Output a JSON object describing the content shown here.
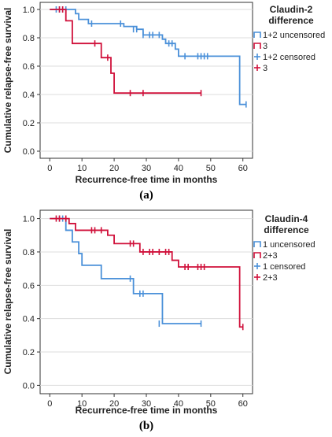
{
  "chart_data": [
    {
      "type": "line",
      "caption": "(a)",
      "xlabel": "Recurrence-free time in months",
      "ylabel": "Cumulative relapse-free survival",
      "xlim": [
        -3,
        63
      ],
      "ylim": [
        -0.05,
        1.05
      ],
      "xticks": [
        "0",
        "10",
        "20",
        "30",
        "40",
        "50",
        "60"
      ],
      "yticks": [
        "0.0",
        "0.2",
        "0.4",
        "0.6",
        "0.8",
        "1.0"
      ],
      "xtick_values": [
        0,
        10,
        20,
        30,
        40,
        50,
        60
      ],
      "ytick_values": [
        0,
        0.2,
        0.4,
        0.6,
        0.8,
        1.0
      ],
      "grid": true,
      "legend": {
        "title_line1": "Claudin-2",
        "title_line2": "difference",
        "placement": "right",
        "entries": [
          {
            "label": "1+2 uncensored",
            "color": "#4a90d9",
            "kind": "step"
          },
          {
            "label": "3",
            "color": "#d0103a",
            "kind": "step"
          },
          {
            "label": "1+2 censored",
            "color": "#4a90d9",
            "kind": "cross"
          },
          {
            "label": "3",
            "color": "#d0103a",
            "kind": "cross"
          }
        ]
      },
      "series": [
        {
          "color": "#4a90d9",
          "steps": [
            [
              0,
              1.0
            ],
            [
              8,
              0.97
            ],
            [
              9,
              0.93
            ],
            [
              12,
              0.9
            ],
            [
              23,
              0.88
            ],
            [
              27,
              0.86
            ],
            [
              29,
              0.82
            ],
            [
              35,
              0.79
            ],
            [
              36,
              0.76
            ],
            [
              39,
              0.72
            ],
            [
              40,
              0.67
            ],
            [
              59,
              0.33
            ],
            [
              61,
              0.33
            ]
          ],
          "censored": [
            [
              2,
              1.0
            ],
            [
              3,
              1.0
            ],
            [
              4,
              1.0
            ],
            [
              5,
              1.0
            ],
            [
              13,
              0.9
            ],
            [
              22,
              0.9
            ],
            [
              26,
              0.86
            ],
            [
              27,
              0.86
            ],
            [
              29,
              0.82
            ],
            [
              31,
              0.82
            ],
            [
              32,
              0.82
            ],
            [
              34,
              0.82
            ],
            [
              37,
              0.76
            ],
            [
              38,
              0.76
            ],
            [
              42,
              0.67
            ],
            [
              46,
              0.67
            ],
            [
              47,
              0.67
            ],
            [
              48,
              0.67
            ],
            [
              49,
              0.67
            ],
            [
              61,
              0.33
            ]
          ]
        },
        {
          "color": "#d0103a",
          "steps": [
            [
              0,
              1.0
            ],
            [
              5,
              0.92
            ],
            [
              7,
              0.76
            ],
            [
              14,
              0.76
            ],
            [
              16,
              0.66
            ],
            [
              19,
              0.55
            ],
            [
              20,
              0.41
            ],
            [
              47,
              0.41
            ]
          ],
          "censored": [
            [
              3,
              1.0
            ],
            [
              4,
              1.0
            ],
            [
              14,
              0.76
            ],
            [
              18,
              0.66
            ],
            [
              25,
              0.41
            ],
            [
              29,
              0.41
            ],
            [
              47,
              0.41
            ]
          ]
        }
      ]
    },
    {
      "type": "line",
      "caption": "(b)",
      "xlabel": "Recurrence-free time in months",
      "ylabel": "Cumulative relapse-free survival",
      "xlim": [
        -3,
        63
      ],
      "ylim": [
        -0.05,
        1.05
      ],
      "xticks": [
        "0",
        "10",
        "20",
        "30",
        "40",
        "50",
        "60"
      ],
      "yticks": [
        "0.0",
        "0.2",
        "0.4",
        "0.6",
        "0.8",
        "1.0"
      ],
      "xtick_values": [
        0,
        10,
        20,
        30,
        40,
        50,
        60
      ],
      "ytick_values": [
        0,
        0.2,
        0.4,
        0.6,
        0.8,
        1.0
      ],
      "grid": true,
      "legend": {
        "title_line1": "Claudin-4",
        "title_line2": "difference",
        "placement": "right",
        "entries": [
          {
            "label": "1 uncensored",
            "color": "#4a90d9",
            "kind": "step"
          },
          {
            "label": "2+3",
            "color": "#d0103a",
            "kind": "step"
          },
          {
            "label": "1 censored",
            "color": "#4a90d9",
            "kind": "cross"
          },
          {
            "label": "2+3",
            "color": "#d0103a",
            "kind": "cross"
          }
        ]
      },
      "series": [
        {
          "color": "#4a90d9",
          "steps": [
            [
              0,
              1.0
            ],
            [
              5,
              0.93
            ],
            [
              7,
              0.86
            ],
            [
              9,
              0.79
            ],
            [
              10,
              0.72
            ],
            [
              16,
              0.64
            ],
            [
              26,
              0.55
            ],
            [
              34,
              0.55
            ],
            [
              35,
              0.37
            ],
            [
              47,
              0.37
            ]
          ],
          "censored": [
            [
              3,
              1.0
            ],
            [
              4,
              1.0
            ],
            [
              25,
              0.64
            ],
            [
              28,
              0.55
            ],
            [
              29,
              0.55
            ],
            [
              34,
              0.37
            ],
            [
              47,
              0.37
            ]
          ]
        },
        {
          "color": "#d0103a",
          "steps": [
            [
              0,
              1.0
            ],
            [
              6,
              0.97
            ],
            [
              8,
              0.93
            ],
            [
              18,
              0.9
            ],
            [
              20,
              0.85
            ],
            [
              28,
              0.8
            ],
            [
              38,
              0.75
            ],
            [
              40,
              0.71
            ],
            [
              59,
              0.35
            ],
            [
              60,
              0.35
            ]
          ],
          "censored": [
            [
              2,
              1.0
            ],
            [
              3,
              1.0
            ],
            [
              5,
              1.0
            ],
            [
              13,
              0.93
            ],
            [
              14,
              0.93
            ],
            [
              16,
              0.93
            ],
            [
              25,
              0.85
            ],
            [
              26,
              0.85
            ],
            [
              29,
              0.8
            ],
            [
              31,
              0.8
            ],
            [
              32,
              0.8
            ],
            [
              34,
              0.8
            ],
            [
              36,
              0.8
            ],
            [
              37,
              0.8
            ],
            [
              42,
              0.71
            ],
            [
              43,
              0.71
            ],
            [
              46,
              0.71
            ],
            [
              47,
              0.71
            ],
            [
              48,
              0.71
            ],
            [
              60,
              0.35
            ]
          ]
        }
      ]
    }
  ]
}
